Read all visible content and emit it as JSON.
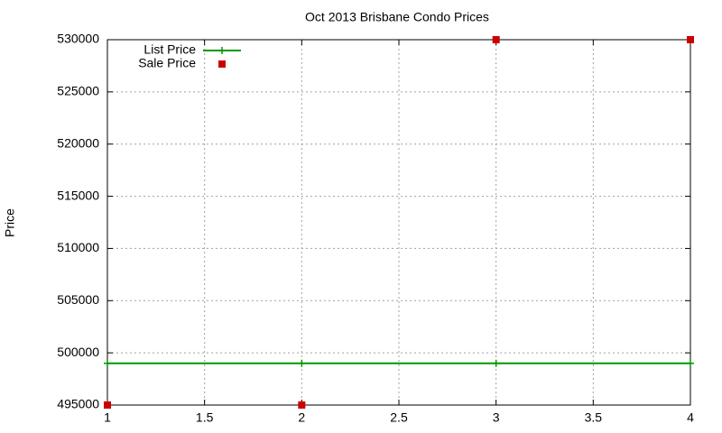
{
  "chart_data": {
    "type": "line",
    "title": "Oct 2013 Brisbane Condo Prices",
    "y_label": "Price",
    "x": [
      1,
      2,
      3,
      4
    ],
    "series": [
      {
        "name": "List Price",
        "color": "#009900",
        "mode": "lines+points",
        "values": [
          499000,
          499000,
          499000,
          499000
        ]
      },
      {
        "name": "Sale Price",
        "color": "#cc0000",
        "mode": "points",
        "values": [
          495000,
          495000,
          530000,
          530000
        ]
      }
    ],
    "xlim": [
      1,
      4
    ],
    "xticks": [
      1,
      1.5,
      2,
      2.5,
      3,
      3.5,
      4
    ],
    "ylim": [
      495000,
      530000
    ],
    "yticks": [
      495000,
      500000,
      505000,
      510000,
      515000,
      520000,
      525000,
      530000
    ],
    "grid": true,
    "legend": "top left"
  }
}
